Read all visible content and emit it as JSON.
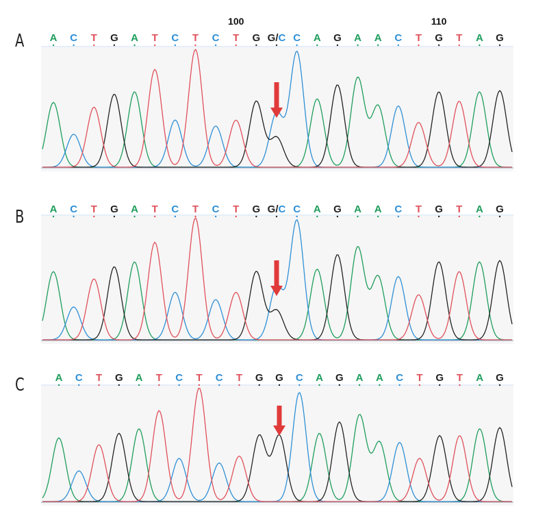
{
  "colors": {
    "A": "#1e9d5c",
    "C": "#2e8fd6",
    "G": "#222222",
    "T": "#e0505a",
    "arrow": "#e03a3a",
    "chrom_bg": "#f6f6f6",
    "baseline_bg": "#e6eef8"
  },
  "panels": [
    {
      "id": "A",
      "letter": "A",
      "position_labels": [
        {
          "text": "100",
          "base_index": 9
        },
        {
          "text": "110",
          "base_index": 19
        }
      ],
      "bases": [
        "A",
        "C",
        "T",
        "G",
        "A",
        "T",
        "C",
        "T",
        "C",
        "T",
        "G",
        "G/C",
        "C",
        "A",
        "G",
        "A",
        "A",
        "C",
        "T",
        "G",
        "T",
        "A",
        "G"
      ],
      "arrow_base_index": 11
    },
    {
      "id": "B",
      "letter": "B",
      "position_labels": [],
      "bases": [
        "A",
        "C",
        "T",
        "G",
        "A",
        "T",
        "C",
        "T",
        "C",
        "T",
        "G",
        "G/C",
        "C",
        "A",
        "G",
        "A",
        "A",
        "C",
        "T",
        "G",
        "T",
        "A",
        "G"
      ],
      "arrow_base_index": 11
    },
    {
      "id": "C",
      "letter": "C",
      "position_labels": [],
      "bases": [
        "A",
        "C",
        "T",
        "G",
        "A",
        "T",
        "C",
        "T",
        "C",
        "T",
        "G",
        "G",
        "C",
        "A",
        "G",
        "A",
        "A",
        "C",
        "T",
        "G",
        "T",
        "A",
        "G"
      ],
      "arrow_base_index": 11
    }
  ]
}
